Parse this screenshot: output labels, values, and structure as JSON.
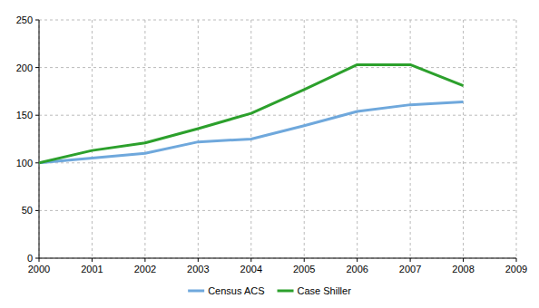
{
  "chart_data": {
    "type": "line",
    "x": [
      2000,
      2001,
      2002,
      2003,
      2004,
      2005,
      2006,
      2007,
      2008
    ],
    "series": [
      {
        "name": "Census ACS",
        "color": "#6fa8dc",
        "values": [
          100,
          105,
          110,
          122,
          125,
          139,
          154,
          161,
          164
        ]
      },
      {
        "name": "Case Shiller",
        "color": "#2ca02c",
        "values": [
          100,
          113,
          121,
          136,
          152,
          177,
          203,
          203,
          181
        ]
      }
    ],
    "xlim": [
      2000,
      2009
    ],
    "xticks": [
      2000,
      2001,
      2002,
      2003,
      2004,
      2005,
      2006,
      2007,
      2008,
      2009
    ],
    "ylim": [
      0,
      250
    ],
    "yticks": [
      0,
      50,
      100,
      150,
      200,
      250
    ],
    "grid": true,
    "legend": "bottom"
  }
}
